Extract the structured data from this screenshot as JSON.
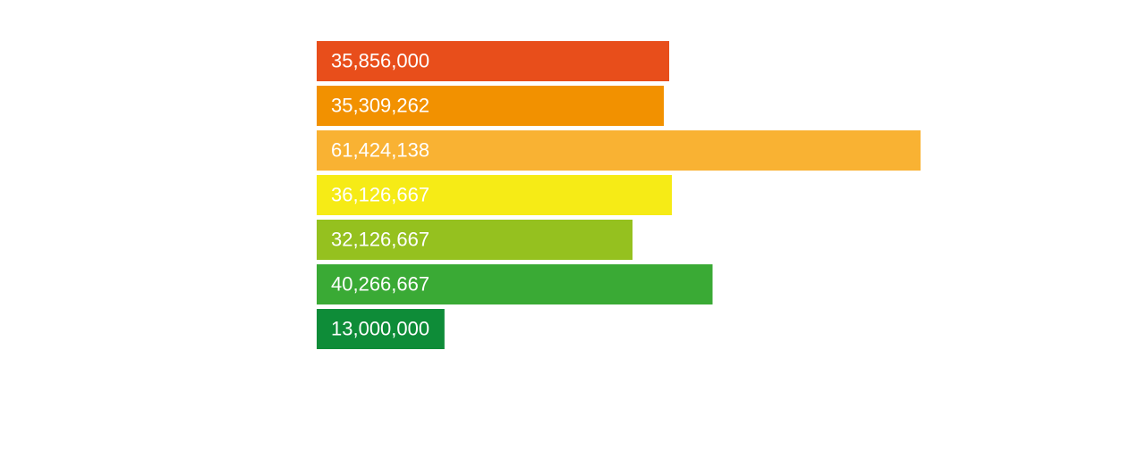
{
  "chart_data": {
    "type": "bar",
    "orientation": "horizontal",
    "categories": [
      null,
      null,
      null,
      null,
      null,
      null,
      null
    ],
    "values": [
      35856000,
      35309262,
      61424138,
      36126667,
      32126667,
      40266667,
      13000000
    ],
    "value_labels": [
      "35,856,000",
      "35,309,262",
      "61,424,138",
      "36,126,667",
      "32,126,667",
      "40,266,667",
      "13,000,000"
    ],
    "colors": [
      "#e84e1b",
      "#f29100",
      "#f9b233",
      "#f6eb16",
      "#95c11f",
      "#3aaa35",
      "#0e8c38"
    ]
  }
}
